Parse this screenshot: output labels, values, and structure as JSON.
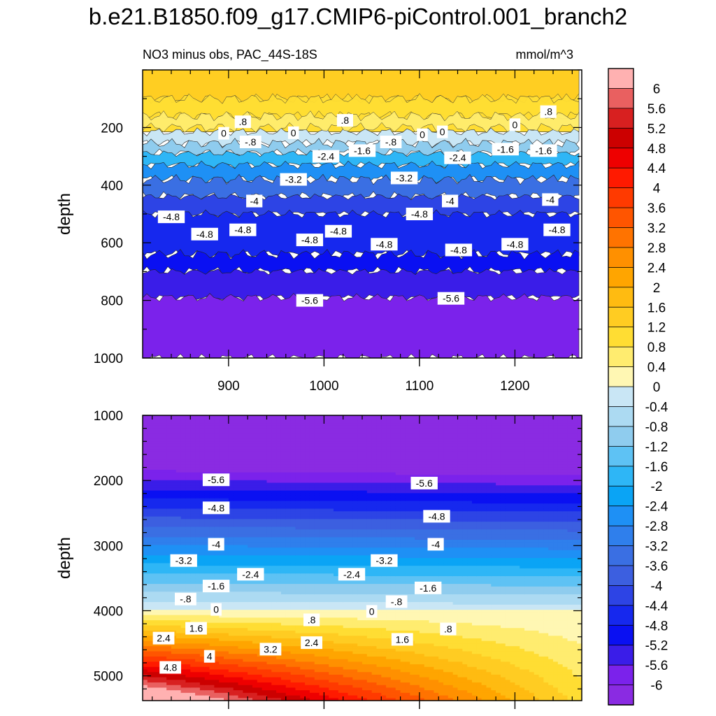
{
  "figure": {
    "title": "b.e21.B1850.f09_g17.CMIP6-piControl.001_branch2",
    "subtitle_left": "NO3 minus obs, PAC_44S-18S",
    "subtitle_right": "mmol/m^3"
  },
  "chart_data": [
    {
      "type": "heatmap",
      "panel": "upper",
      "title": "NO3 minus obs, PAC_44S-18S",
      "units": "mmol/m^3",
      "xlabel": "",
      "ylabel": "depth",
      "xlim": [
        810,
        1270
      ],
      "ylim": [
        1000,
        0
      ],
      "x_ticks": [
        900,
        1000,
        1100,
        1200
      ],
      "y_ticks": [
        200,
        400,
        600,
        800,
        1000
      ],
      "bands_depth": [
        {
          "top": 0,
          "bottom": 215,
          "value": 1.0
        },
        {
          "top": 215,
          "bottom": 255,
          "value": -0.4
        },
        {
          "top": 255,
          "bottom": 290,
          "value": -1.2
        },
        {
          "top": 290,
          "bottom": 330,
          "value": -2.0
        },
        {
          "top": 330,
          "bottom": 380,
          "value": -2.8
        },
        {
          "top": 380,
          "bottom": 440,
          "value": -3.6
        },
        {
          "top": 440,
          "bottom": 500,
          "value": -4.4
        },
        {
          "top": 500,
          "bottom": 640,
          "value": -4.8
        },
        {
          "top": 640,
          "bottom": 700,
          "value": -5.2
        },
        {
          "top": 700,
          "bottom": 790,
          "value": -5.6
        },
        {
          "top": 790,
          "bottom": 1000,
          "value": -6.0
        }
      ],
      "contour_labels": [
        {
          "text": ".8",
          "x": 915,
          "y": 180
        },
        {
          "text": ".8",
          "x": 1022,
          "y": 175
        },
        {
          "text": ".8",
          "x": 1235,
          "y": 145
        },
        {
          "text": "0",
          "x": 895,
          "y": 220
        },
        {
          "text": "0",
          "x": 968,
          "y": 218
        },
        {
          "text": "0",
          "x": 1103,
          "y": 225
        },
        {
          "text": "0",
          "x": 1124,
          "y": 215
        },
        {
          "text": "0",
          "x": 1200,
          "y": 190
        },
        {
          "text": "-.8",
          "x": 923,
          "y": 250
        },
        {
          "text": "-.8",
          "x": 1070,
          "y": 250
        },
        {
          "text": "-1.6",
          "x": 1040,
          "y": 280
        },
        {
          "text": "-1.6",
          "x": 1190,
          "y": 275
        },
        {
          "text": "-1.6",
          "x": 1230,
          "y": 280
        },
        {
          "text": "-2.4",
          "x": 1002,
          "y": 300
        },
        {
          "text": "-2.4",
          "x": 1140,
          "y": 305
        },
        {
          "text": "-3.2",
          "x": 968,
          "y": 380
        },
        {
          "text": "-3.2",
          "x": 1084,
          "y": 375
        },
        {
          "text": "-4",
          "x": 927,
          "y": 455
        },
        {
          "text": "-4",
          "x": 1132,
          "y": 455
        },
        {
          "text": "-4",
          "x": 1237,
          "y": 450
        },
        {
          "text": "-4.8",
          "x": 840,
          "y": 510
        },
        {
          "text": "-4.8",
          "x": 875,
          "y": 570
        },
        {
          "text": "-4.8",
          "x": 915,
          "y": 555
        },
        {
          "text": "-4.8",
          "x": 1015,
          "y": 560
        },
        {
          "text": "-4.8",
          "x": 985,
          "y": 590
        },
        {
          "text": "-4.8",
          "x": 1063,
          "y": 605
        },
        {
          "text": "-4.8",
          "x": 1100,
          "y": 500
        },
        {
          "text": "-4.8",
          "x": 1141,
          "y": 625
        },
        {
          "text": "-4.8",
          "x": 1200,
          "y": 605
        },
        {
          "text": "-4.8",
          "x": 1244,
          "y": 555
        },
        {
          "text": "-5.6",
          "x": 985,
          "y": 800
        },
        {
          "text": "-5.6",
          "x": 1133,
          "y": 793
        }
      ]
    },
    {
      "type": "heatmap",
      "panel": "lower",
      "xlabel": "",
      "ylabel": "depth",
      "xlim": [
        810,
        1270
      ],
      "ylim": [
        5380,
        1000
      ],
      "x_ticks": [
        900,
        1000,
        1100,
        1200
      ],
      "y_ticks": [
        1000,
        2000,
        3000,
        4000,
        5000
      ],
      "contour_labels": [
        {
          "text": "-5.6",
          "x": 887,
          "y": 1990
        },
        {
          "text": "-5.6",
          "x": 1105,
          "y": 2040
        },
        {
          "text": "-4.8",
          "x": 887,
          "y": 2420
        },
        {
          "text": "-4.8",
          "x": 1118,
          "y": 2550
        },
        {
          "text": "-4",
          "x": 887,
          "y": 2980
        },
        {
          "text": "-4",
          "x": 1117,
          "y": 2980
        },
        {
          "text": "-3.2",
          "x": 853,
          "y": 3230
        },
        {
          "text": "-3.2",
          "x": 1063,
          "y": 3230
        },
        {
          "text": "-2.4",
          "x": 923,
          "y": 3440
        },
        {
          "text": "-2.4",
          "x": 1029,
          "y": 3440
        },
        {
          "text": "-1.6",
          "x": 887,
          "y": 3620
        },
        {
          "text": "-1.6",
          "x": 1109,
          "y": 3650
        },
        {
          "text": "-.8",
          "x": 855,
          "y": 3820
        },
        {
          "text": "-.8",
          "x": 1076,
          "y": 3860
        },
        {
          "text": "0",
          "x": 887,
          "y": 3980
        },
        {
          "text": "0",
          "x": 1050,
          "y": 4010
        },
        {
          "text": ".8",
          "x": 987,
          "y": 4140
        },
        {
          "text": ".8",
          "x": 1130,
          "y": 4280
        },
        {
          "text": "1.6",
          "x": 866,
          "y": 4270
        },
        {
          "text": "1.6",
          "x": 1082,
          "y": 4440
        },
        {
          "text": "2.4",
          "x": 832,
          "y": 4420
        },
        {
          "text": "2.4",
          "x": 987,
          "y": 4490
        },
        {
          "text": "3.2",
          "x": 944,
          "y": 4590
        },
        {
          "text": "4",
          "x": 880,
          "y": 4700
        },
        {
          "text": "4.8",
          "x": 839,
          "y": 4870
        }
      ]
    }
  ],
  "colorbar": {
    "levels": [
      "6",
      "5.6",
      "5.2",
      "4.8",
      "4.4",
      "4",
      "3.6",
      "3.2",
      "2.8",
      "2.4",
      "2",
      "1.6",
      "1.2",
      "0.8",
      "0.4",
      "0",
      "-0.4",
      "-0.8",
      "-1.2",
      "-1.6",
      "-2",
      "-2.4",
      "-2.8",
      "-3.2",
      "-3.6",
      "-4",
      "-4.4",
      "-4.8",
      "-5.2",
      "-5.6",
      "-6"
    ],
    "colors": [
      "#FFB1B1",
      "#E96060",
      "#D82020",
      "#CC0000",
      "#EE0000",
      "#FF1A00",
      "#FF3A00",
      "#FF5500",
      "#FF7300",
      "#FF9000",
      "#FFA500",
      "#FFBB11",
      "#FFCC22",
      "#FFDD33",
      "#FFEC6F",
      "#FFF7B3",
      "#C9E6F5",
      "#ACDAF2",
      "#8FCCEE",
      "#5EC2F4",
      "#2EB6F6",
      "#0AA4F5",
      "#1E90F5",
      "#2F7FEC",
      "#3A6FE3",
      "#3C5FE0",
      "#2D44E5",
      "#1628EE",
      "#0A10F2",
      "#3A1DE8",
      "#7B22EB",
      "#8A2BE2"
    ]
  }
}
